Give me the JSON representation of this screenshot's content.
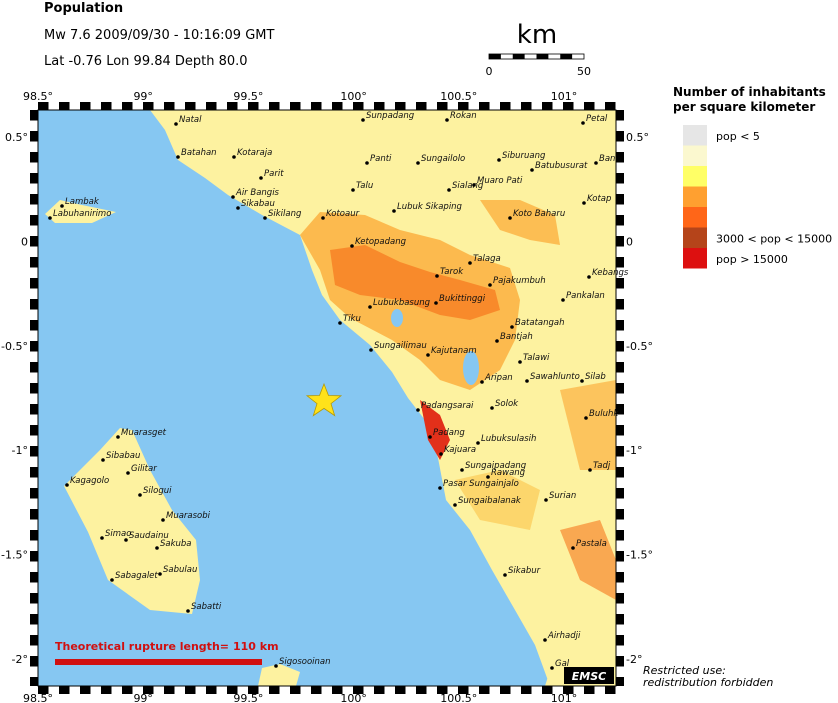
{
  "header": {
    "title": "Population",
    "event": "Mw 7.6  2009/09/30 - 10:16:09 GMT",
    "location": "Lat -0.76    Lon  99.84     Depth  80.0"
  },
  "scale": {
    "unit": "km",
    "ticks": [
      "0",
      "50"
    ]
  },
  "axes": {
    "lon": [
      "98.5°",
      "99°",
      "99.5°",
      "100°",
      "100.5°",
      "101°"
    ],
    "lat": [
      "0.5°",
      "0",
      "-0.5°",
      "-1°",
      "-1.5°",
      "-2°"
    ]
  },
  "legend": {
    "title": [
      "Number of inhabitants",
      "per square kilometer"
    ],
    "items": [
      {
        "color": "#e6e6e6",
        "label": "pop < 5"
      },
      {
        "color": "#fbf8cf",
        "label": null
      },
      {
        "color": "#ffff66",
        "label": null
      },
      {
        "color": "#ffa030",
        "label": null
      },
      {
        "color": "#ff6618",
        "label": null
      },
      {
        "color": "#b5441a",
        "label": "3000 < pop < 15000"
      },
      {
        "color": "#dd1010",
        "label": "pop > 15000"
      }
    ]
  },
  "places": [
    "Natal",
    "Batahan",
    "Kotaraja",
    "Parit",
    "Air Bangis",
    "Sikabau",
    "Sikilang",
    "Lambak",
    "Labuhanirimo",
    "Sunpadang",
    "Rokan",
    "Petal",
    "Panti",
    "Sungailolo",
    "Siburuang",
    "Batubusurat",
    "Ban",
    "Talu",
    "Sialang",
    "Muaro Pati",
    "Koto Baharu",
    "Kotap",
    "Kotoaur",
    "Lubuk Sikaping",
    "Ketopadang",
    "Talaga",
    "Tarok",
    "Pajakumbuh",
    "Kebangs",
    "Pankalan",
    "Lubukbasung",
    "Bukittinggi",
    "Tiku",
    "Batatangah",
    "Bantjah",
    "Sungailimau",
    "Kajutanam",
    "Talawi",
    "Aripan",
    "Sawahlunto",
    "Silab",
    "Padangsarai",
    "Solok",
    "Buluhk",
    "Padang",
    "Kajuara",
    "Lubuksulasih",
    "Tadj",
    "Sungaipadang",
    "Rawang",
    "Pasar Sungainjalo",
    "Sungaibalanak",
    "Surian",
    "Muarasget",
    "Sibabau",
    "Gilitar",
    "Kagagolo",
    "Silogui",
    "Muarasobi",
    "Simao",
    "Saudainu",
    "Sakuba",
    "Sabulau",
    "Sabagalet",
    "Sabatti",
    "Sikabur",
    "Pastala",
    "Airhadji",
    "Sigosooinan",
    "Gal"
  ],
  "rupture": {
    "label": "Theoretical rupture length=",
    "value": "110 km"
  },
  "notes": {
    "logo": "EMSC",
    "restricted": [
      "Restricted use:",
      "redistribution forbidden"
    ]
  }
}
